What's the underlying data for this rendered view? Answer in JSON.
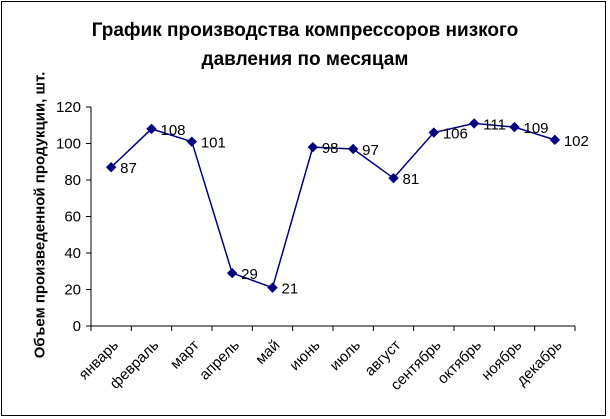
{
  "chart_data": {
    "type": "line",
    "title_lines": [
      "График производства компрессоров низкого",
      "давления по месяцам"
    ],
    "xlabel": "",
    "ylabel": "Объем произведенной продукции, шт.",
    "categories": [
      "январь",
      "февраль",
      "март",
      "апрель",
      "май",
      "июнь",
      "июль",
      "август",
      "сентябрь",
      "октябрь",
      "ноябрь",
      "декабрь"
    ],
    "series": [
      {
        "name": "",
        "values": [
          87,
          108,
          101,
          29,
          21,
          98,
          97,
          81,
          106,
          111,
          109,
          102
        ]
      }
    ],
    "y_ticks": [
      0,
      20,
      40,
      60,
      80,
      100,
      120
    ],
    "ylim": [
      0,
      120
    ],
    "grid": false,
    "legend": "none",
    "data_labels": true,
    "line_color": "#000080",
    "marker": "diamond"
  }
}
